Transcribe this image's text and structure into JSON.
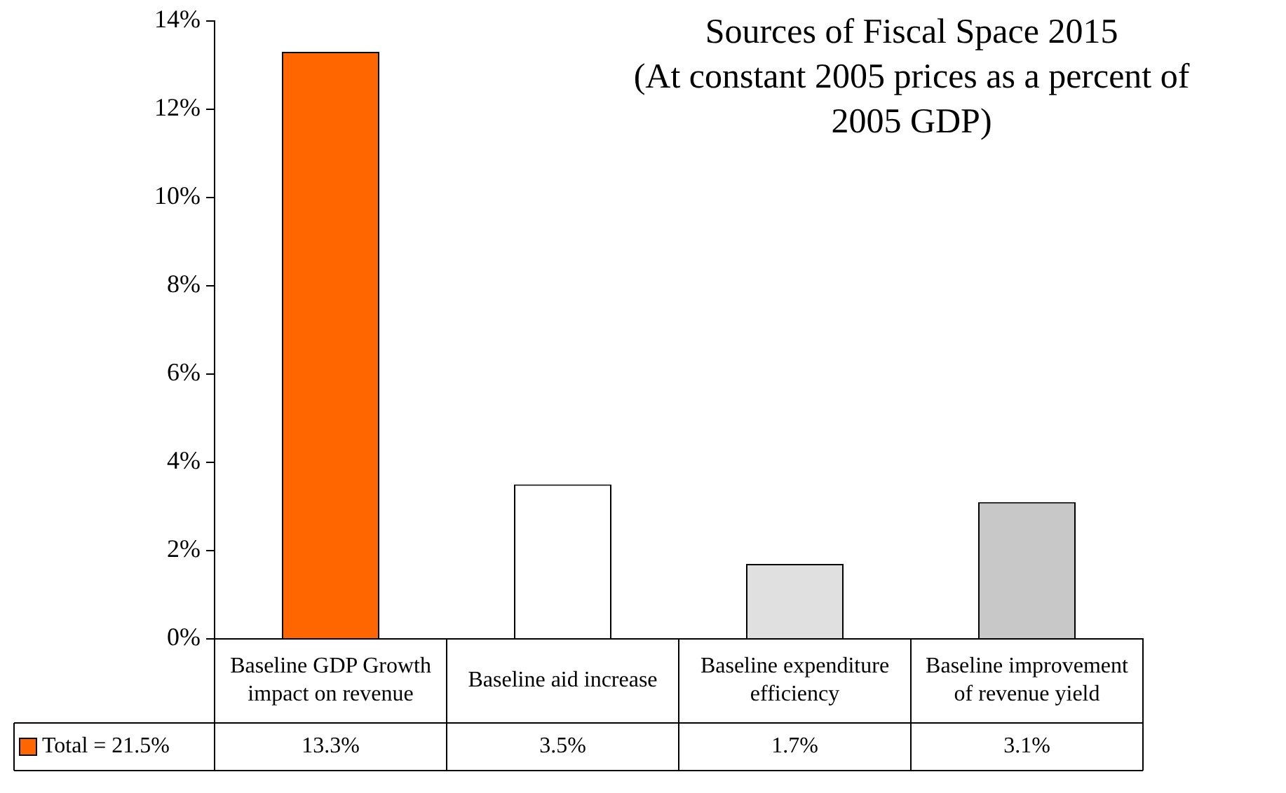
{
  "chart_data": {
    "type": "bar",
    "title": "Sources of Fiscal Space 2015",
    "subtitle": "(At constant 2005 prices as a percent of 2005 GDP)",
    "categories": [
      "Baseline GDP Growth impact on revenue",
      "Baseline aid increase",
      "Baseline expenditure efficiency",
      "Baseline improvement of revenue yield"
    ],
    "series": [
      {
        "name": "Total = 21.5%",
        "color": "#ff6600",
        "colors": [
          "#ff6600",
          "#ffffff",
          "#e0e0e0",
          "#c8c8c8"
        ],
        "values": [
          13.3,
          3.5,
          1.7,
          3.1
        ],
        "value_labels": [
          "13.3%",
          "3.5%",
          "1.7%",
          "3.1%"
        ]
      }
    ],
    "ylim": [
      0,
      14
    ],
    "yticks": [
      {
        "value": 0,
        "label": "0%"
      },
      {
        "value": 2,
        "label": "2%"
      },
      {
        "value": 4,
        "label": "4%"
      },
      {
        "value": 6,
        "label": "6%"
      },
      {
        "value": 8,
        "label": "8%"
      },
      {
        "value": 10,
        "label": "10%"
      },
      {
        "value": 12,
        "label": "12%"
      },
      {
        "value": 14,
        "label": "14%"
      }
    ],
    "grid": false,
    "legend": "bottom left"
  }
}
